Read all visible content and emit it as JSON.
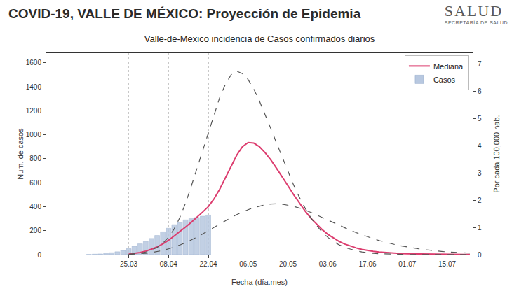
{
  "slide": {
    "title": "COVID-19, VALLE DE MÉXICO: Proyección de Epidemia",
    "logo": "SALUD",
    "logo_subtitle": "SECRETARÍA DE SALUD"
  },
  "chart_data": {
    "type": "line",
    "title": "Valle-de-Mexico incidencia de Casos confirmados diarios",
    "x_label": "Fecha (día.mes)",
    "y_label": "Num. de casos",
    "y2_label": "Por cada 100,000 hab.",
    "categories": [
      null,
      null,
      null,
      null,
      null,
      null,
      null,
      null,
      null,
      null,
      null,
      null,
      null,
      null,
      "25.03",
      null,
      null,
      null,
      null,
      null,
      null,
      "08.04",
      null,
      null,
      null,
      null,
      null,
      null,
      "22.04",
      null,
      null,
      null,
      null,
      null,
      null,
      "06.05",
      null,
      null,
      null,
      null,
      null,
      null,
      "20.05",
      null,
      null,
      null,
      null,
      null,
      null,
      "03.06",
      null,
      null,
      null,
      null,
      null,
      null,
      "17.06",
      null,
      null,
      null,
      null,
      null,
      null,
      "01.07",
      null,
      null,
      null,
      null,
      null,
      null,
      "15.07",
      null,
      null,
      null,
      null
    ],
    "ylim": [
      0,
      1680
    ],
    "yticks": [
      0,
      200,
      400,
      600,
      800,
      1000,
      1200,
      1400,
      1600
    ],
    "y2lim": [
      0,
      7.4
    ],
    "y2ticks": [
      0,
      1,
      2,
      3,
      4,
      5,
      6,
      7
    ],
    "grid": "x",
    "legend": "upper right",
    "series": [
      {
        "name": "Casos",
        "type": "bar",
        "color": "#b8c8e0",
        "values": [
          null,
          null,
          null,
          null,
          null,
          null,
          null,
          2,
          4,
          6,
          10,
          16,
          24,
          35,
          50,
          70,
          90,
          110,
          135,
          160,
          190,
          220,
          250,
          270,
          290,
          300,
          310,
          320,
          330,
          null,
          null,
          null,
          null,
          null,
          null,
          null,
          null,
          null,
          null,
          null,
          null,
          null,
          null,
          null,
          null,
          null,
          null,
          null,
          null,
          null,
          null,
          null,
          null,
          null,
          null,
          null,
          null,
          null,
          null,
          null,
          null,
          null,
          null,
          null,
          null,
          null,
          null,
          null,
          null,
          null,
          null,
          null,
          null,
          null,
          null
        ]
      },
      {
        "name": "Mediana",
        "type": "line",
        "line_style": "solid",
        "color": "#dc3c6e",
        "values": [
          null,
          null,
          null,
          null,
          null,
          null,
          null,
          null,
          null,
          null,
          null,
          null,
          null,
          null,
          5,
          10,
          18,
          30,
          45,
          65,
          90,
          120,
          155,
          195,
          230,
          270,
          310,
          355,
          400,
          465,
          545,
          640,
          740,
          830,
          900,
          935,
          930,
          900,
          850,
          790,
          720,
          650,
          575,
          500,
          430,
          365,
          305,
          255,
          210,
          170,
          138,
          110,
          88,
          70,
          56,
          44,
          35,
          28,
          22,
          18,
          14,
          11,
          9,
          7,
          6,
          5,
          4,
          3,
          3,
          2,
          2,
          2,
          1,
          1,
          1
        ]
      },
      {
        "type": "line",
        "line_style": "dashed",
        "color": "#555555",
        "values": [
          null,
          null,
          null,
          null,
          null,
          null,
          null,
          null,
          null,
          null,
          null,
          null,
          null,
          null,
          3,
          6,
          12,
          22,
          38,
          60,
          95,
          145,
          215,
          310,
          430,
          570,
          720,
          870,
          1020,
          1170,
          1310,
          1420,
          1500,
          1530,
          1510,
          1460,
          1380,
          1280,
          1170,
          1050,
          930,
          810,
          690,
          580,
          480,
          390,
          310,
          245,
          190,
          145,
          110,
          82,
          60,
          44,
          32,
          23,
          16,
          11,
          8,
          6,
          4,
          3,
          2,
          2,
          1,
          1,
          1,
          1,
          1,
          1,
          1,
          1,
          1,
          1,
          1
        ]
      },
      {
        "type": "line",
        "line_style": "dashed",
        "color": "#555555",
        "values": [
          null,
          null,
          null,
          null,
          null,
          null,
          null,
          null,
          null,
          null,
          null,
          null,
          null,
          null,
          2,
          4,
          7,
          11,
          17,
          25,
          35,
          48,
          63,
          80,
          100,
          122,
          146,
          172,
          200,
          228,
          256,
          284,
          310,
          334,
          356,
          375,
          392,
          406,
          416,
          422,
          424,
          421,
          414,
          403,
          389,
          372,
          353,
          332,
          310,
          288,
          266,
          244,
          223,
          203,
          184,
          166,
          149,
          133,
          118,
          105,
          93,
          82,
          72,
          63,
          55,
          48,
          42,
          36,
          31,
          27,
          23,
          20,
          17,
          15,
          13
        ]
      }
    ]
  }
}
